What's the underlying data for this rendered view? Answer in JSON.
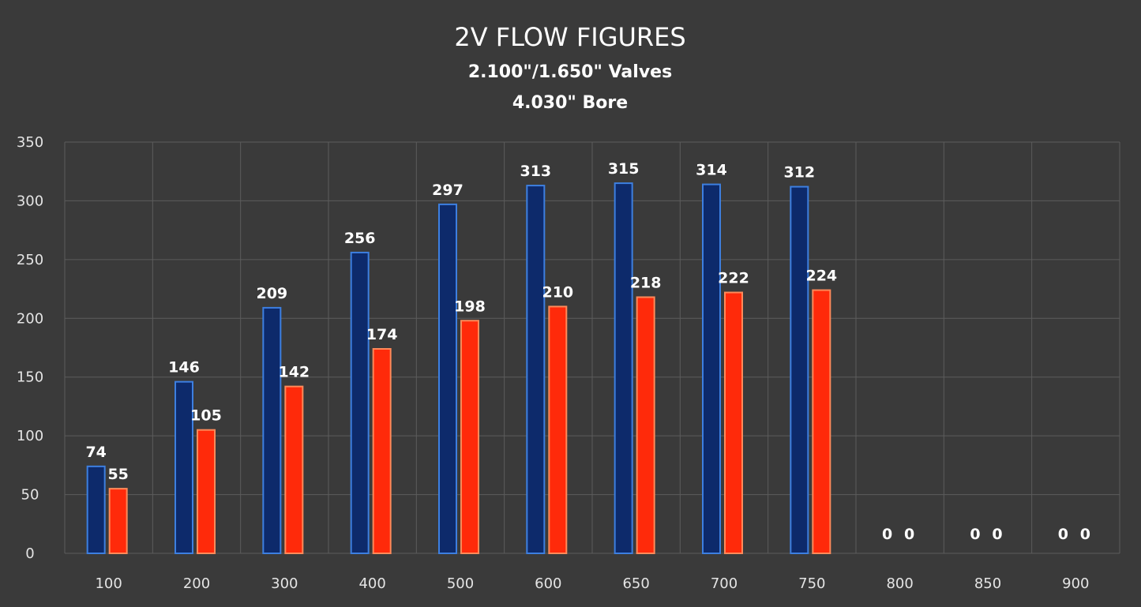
{
  "chart_data": {
    "type": "bar",
    "title": "2V FLOW FIGURES",
    "subtitle_lines": [
      "2.100\"/1.650\" Valves",
      "4.030\" Bore"
    ],
    "categories": [
      "100",
      "200",
      "300",
      "400",
      "500",
      "600",
      "650",
      "700",
      "750",
      "800",
      "850",
      "900"
    ],
    "series": [
      {
        "values": [
          74,
          146,
          209,
          256,
          297,
          313,
          315,
          314,
          312,
          0,
          0,
          0
        ],
        "color": "#0d2a6b",
        "border": "#3d7fe0"
      },
      {
        "values": [
          55,
          105,
          142,
          174,
          198,
          210,
          218,
          222,
          224,
          0,
          0,
          0
        ],
        "color": "#ff2a0a",
        "border": "#ff8a5a"
      }
    ],
    "ylim": [
      0,
      350
    ],
    "yticks": [
      0,
      50,
      100,
      150,
      200,
      250,
      300,
      350
    ],
    "grid": true,
    "legend": "none",
    "background": "#3a3a3a"
  }
}
